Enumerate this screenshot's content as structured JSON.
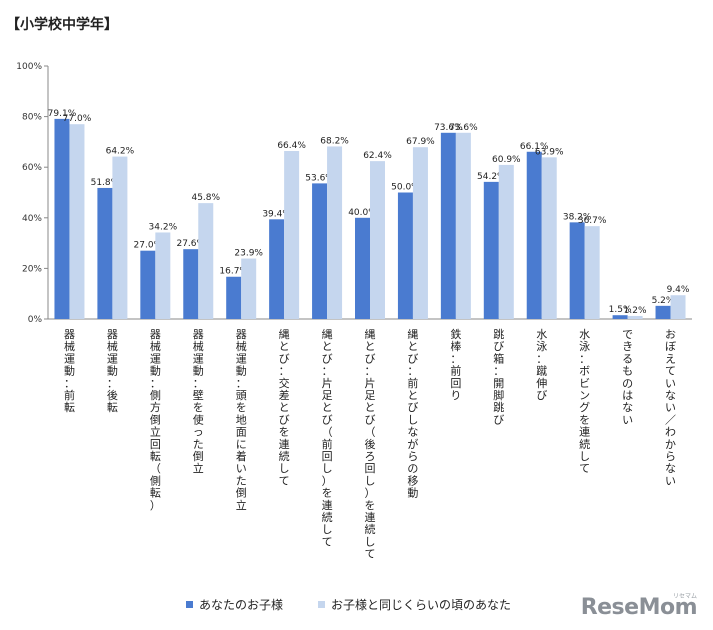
{
  "title": "【小学校中学年】",
  "chart_data": {
    "type": "bar",
    "ylim": [
      0,
      100
    ],
    "yticks": [
      "0%",
      "20%",
      "40%",
      "60%",
      "80%",
      "100%"
    ],
    "grid": false,
    "legend_position": "bottom",
    "categories": [
      "器械運動：前転",
      "器械運動：後転",
      "器械運動：側方倒立回転（側転）",
      "器械運動：壁を使った倒立",
      "器械運動：頭を地面に着いた倒立",
      "縄とび：交差とびを連続して",
      "縄とび：片足とび（前回し）を連続して",
      "縄とび：片足とび（後ろ回し）を連続して",
      "縄とび：前とびしながらの移動",
      "鉄棒：前回り",
      "跳び箱：開脚跳び",
      "水泳：蹴伸び",
      "水泳：ボビングを連続して",
      "できるものはない",
      "おぼえていない／わからない"
    ],
    "series": [
      {
        "name": "あなたのお子様",
        "color": "#4a7bd0",
        "values": [
          79.1,
          51.8,
          27.0,
          27.6,
          16.7,
          39.4,
          53.6,
          40.0,
          50.0,
          73.6,
          54.2,
          66.1,
          38.2,
          1.5,
          5.2
        ],
        "labels": [
          "79.1%",
          "51.8%",
          "27.0%",
          "27.6%",
          "16.7%",
          "39.4%",
          "53.6%",
          "40.0%",
          "50.0%",
          "73.6%",
          "54.2%",
          "66.1%",
          "38.2%",
          "1.5%",
          "5.2%"
        ]
      },
      {
        "name": "お子様と同じくらいの頃のあなた",
        "color": "#c5d6ee",
        "values": [
          77.0,
          64.2,
          34.2,
          45.8,
          23.9,
          66.4,
          68.2,
          62.4,
          67.9,
          73.6,
          60.9,
          63.9,
          36.7,
          1.2,
          9.4
        ],
        "labels": [
          "77.0%",
          "64.2%",
          "34.2%",
          "45.8%",
          "23.9%",
          "66.4%",
          "68.2%",
          "62.4%",
          "67.9%",
          "73.6%",
          "60.9%",
          "63.9%",
          "36.7%",
          "1.2%",
          "9.4%"
        ]
      }
    ]
  },
  "logo": {
    "text": "ReseMom",
    "kana": "リセマム"
  }
}
